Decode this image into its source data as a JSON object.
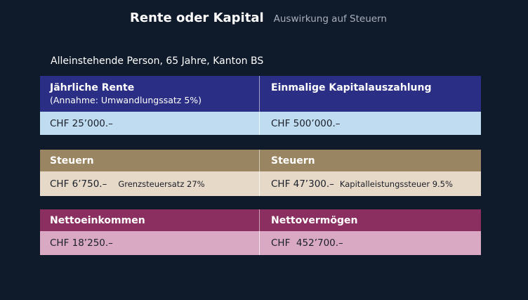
{
  "slide": {
    "title": "Rente oder Kapital",
    "subtitle": "Auswirkung auf Steuern",
    "person": "Alleinstehende Person, 65 Jahre, Kanton BS"
  },
  "income": {
    "left_header": "Jährliche Rente",
    "left_header_sub": "(Annahme: Umwandlungssatz 5%)",
    "right_header": "Einmalige Kapitalauszahlung",
    "left_value": "CHF 25’000.–",
    "right_value": "CHF 500’000.–"
  },
  "taxes": {
    "left_header": "Steuern",
    "right_header": "Steuern",
    "left_value": "CHF 6’750.–",
    "left_note": "Grenzsteuersatz 27%",
    "right_value": "CHF 47’300.–",
    "right_note": "Kapitalleistungssteuer 9.5%"
  },
  "net": {
    "left_header": "Nettoeinkommen",
    "right_header": "Nettovermögen",
    "left_value": "CHF 18’250.–",
    "right_value": "CHF  452’700.–"
  },
  "colors": {
    "background": "#0f1a2b",
    "income_header": "#2a2f85",
    "income_value": "#bfdcf0",
    "taxes_header": "#9a8562",
    "taxes_value": "#e7d9c7",
    "net_header": "#8a2f5f",
    "net_value": "#d9a9c4"
  }
}
